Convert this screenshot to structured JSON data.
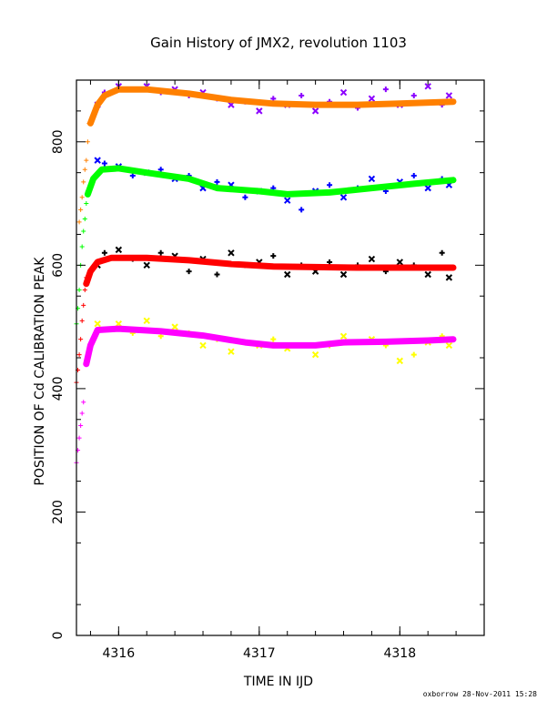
{
  "chart_data": {
    "type": "scatter",
    "title": "Gain History of JMX2, revolution 1103",
    "xlabel": "TIME IN IJD",
    "ylabel": "POSITION OF Cd CALIBRATION PEAK",
    "xlim": [
      4315.7,
      4318.6
    ],
    "ylim": [
      0,
      900
    ],
    "xticks": [
      4316,
      4317,
      4318
    ],
    "xtick_labels": [
      "4316",
      "4317",
      "4318"
    ],
    "yticks": [
      0,
      200,
      400,
      600,
      800
    ],
    "ytick_labels": [
      "0",
      "200",
      "400",
      "600",
      "800"
    ],
    "grid": false,
    "series": [
      {
        "points_color": "#8b00ff",
        "fit_color": "#ff8000",
        "ramp": [
          [
            4315.72,
            670
          ],
          [
            4315.73,
            690
          ],
          [
            4315.74,
            710
          ],
          [
            4315.75,
            735
          ],
          [
            4315.76,
            755
          ],
          [
            4315.77,
            770
          ],
          [
            4315.78,
            800
          ],
          [
            4315.79,
            830
          ]
        ],
        "points": [
          [
            4315.85,
            860
          ],
          [
            4315.9,
            880
          ],
          [
            4316.0,
            890
          ],
          [
            4316.1,
            885
          ],
          [
            4316.2,
            890
          ],
          [
            4316.3,
            880
          ],
          [
            4316.4,
            885
          ],
          [
            4316.5,
            875
          ],
          [
            4316.6,
            880
          ],
          [
            4316.7,
            870
          ],
          [
            4316.8,
            860
          ],
          [
            4316.9,
            865
          ],
          [
            4317.0,
            850
          ],
          [
            4317.1,
            870
          ],
          [
            4317.2,
            860
          ],
          [
            4317.3,
            875
          ],
          [
            4317.4,
            850
          ],
          [
            4317.5,
            865
          ],
          [
            4317.6,
            880
          ],
          [
            4317.7,
            855
          ],
          [
            4317.8,
            870
          ],
          [
            4317.9,
            885
          ],
          [
            4318.0,
            860
          ],
          [
            4318.1,
            875
          ],
          [
            4318.2,
            890
          ],
          [
            4318.3,
            860
          ],
          [
            4318.35,
            875
          ]
        ],
        "fit": [
          [
            4315.8,
            830
          ],
          [
            4315.85,
            860
          ],
          [
            4315.9,
            875
          ],
          [
            4316.0,
            885
          ],
          [
            4316.2,
            885
          ],
          [
            4316.5,
            878
          ],
          [
            4316.8,
            868
          ],
          [
            4317.1,
            862
          ],
          [
            4317.4,
            860
          ],
          [
            4317.7,
            860
          ],
          [
            4318.0,
            862
          ],
          [
            4318.38,
            865
          ]
        ]
      },
      {
        "points_color": "#0000ff",
        "fit_color": "#00ff00",
        "ramp": [
          [
            4315.7,
            505
          ],
          [
            4315.71,
            530
          ],
          [
            4315.72,
            560
          ],
          [
            4315.73,
            600
          ],
          [
            4315.74,
            630
          ],
          [
            4315.75,
            655
          ],
          [
            4315.76,
            675
          ],
          [
            4315.77,
            700
          ],
          [
            4315.78,
            720
          ]
        ],
        "points": [
          [
            4315.85,
            770
          ],
          [
            4315.9,
            765
          ],
          [
            4316.0,
            760
          ],
          [
            4316.1,
            745
          ],
          [
            4316.2,
            750
          ],
          [
            4316.3,
            755
          ],
          [
            4316.4,
            740
          ],
          [
            4316.5,
            745
          ],
          [
            4316.6,
            725
          ],
          [
            4316.7,
            735
          ],
          [
            4316.8,
            730
          ],
          [
            4316.9,
            710
          ],
          [
            4317.0,
            720
          ],
          [
            4317.1,
            725
          ],
          [
            4317.2,
            705
          ],
          [
            4317.3,
            690
          ],
          [
            4317.4,
            720
          ],
          [
            4317.5,
            730
          ],
          [
            4317.6,
            710
          ],
          [
            4317.7,
            725
          ],
          [
            4317.8,
            740
          ],
          [
            4317.9,
            720
          ],
          [
            4318.0,
            735
          ],
          [
            4318.1,
            745
          ],
          [
            4318.2,
            725
          ],
          [
            4318.3,
            740
          ],
          [
            4318.35,
            730
          ]
        ],
        "fit": [
          [
            4315.78,
            715
          ],
          [
            4315.82,
            740
          ],
          [
            4315.88,
            755
          ],
          [
            4316.0,
            757
          ],
          [
            4316.2,
            750
          ],
          [
            4316.5,
            740
          ],
          [
            4316.7,
            725
          ],
          [
            4317.0,
            720
          ],
          [
            4317.2,
            715
          ],
          [
            4317.5,
            718
          ],
          [
            4317.8,
            725
          ],
          [
            4318.1,
            732
          ],
          [
            4318.38,
            738
          ]
        ]
      },
      {
        "points_color": "#000000",
        "fit_color": "#ff0000",
        "ramp": [
          [
            4315.7,
            410
          ],
          [
            4315.71,
            430
          ],
          [
            4315.72,
            455
          ],
          [
            4315.73,
            480
          ],
          [
            4315.74,
            510
          ],
          [
            4315.75,
            535
          ],
          [
            4315.76,
            560
          ],
          [
            4315.77,
            580
          ]
        ],
        "points": [
          [
            4315.85,
            600
          ],
          [
            4315.9,
            620
          ],
          [
            4316.0,
            625
          ],
          [
            4316.1,
            610
          ],
          [
            4316.2,
            600
          ],
          [
            4316.3,
            620
          ],
          [
            4316.4,
            615
          ],
          [
            4316.5,
            590
          ],
          [
            4316.6,
            610
          ],
          [
            4316.7,
            585
          ],
          [
            4316.8,
            620
          ],
          [
            4316.9,
            600
          ],
          [
            4317.0,
            605
          ],
          [
            4317.1,
            615
          ],
          [
            4317.2,
            585
          ],
          [
            4317.3,
            600
          ],
          [
            4317.4,
            590
          ],
          [
            4317.5,
            605
          ],
          [
            4317.6,
            585
          ],
          [
            4317.7,
            600
          ],
          [
            4317.8,
            610
          ],
          [
            4317.9,
            590
          ],
          [
            4318.0,
            605
          ],
          [
            4318.1,
            600
          ],
          [
            4318.2,
            585
          ],
          [
            4318.3,
            620
          ],
          [
            4318.35,
            580
          ]
        ],
        "fit": [
          [
            4315.77,
            570
          ],
          [
            4315.8,
            590
          ],
          [
            4315.85,
            605
          ],
          [
            4315.95,
            612
          ],
          [
            4316.2,
            612
          ],
          [
            4316.5,
            608
          ],
          [
            4316.8,
            602
          ],
          [
            4317.1,
            598
          ],
          [
            4317.4,
            597
          ],
          [
            4317.7,
            596
          ],
          [
            4318.0,
            596
          ],
          [
            4318.38,
            596
          ]
        ]
      },
      {
        "points_color": "#ffff00",
        "fit_color": "#ff00ff",
        "ramp": [
          [
            4315.7,
            280
          ],
          [
            4315.71,
            300
          ],
          [
            4315.72,
            320
          ],
          [
            4315.73,
            340
          ],
          [
            4315.74,
            360
          ],
          [
            4315.75,
            378
          ]
        ],
        "points": [
          [
            4315.85,
            505
          ],
          [
            4315.9,
            495
          ],
          [
            4316.0,
            505
          ],
          [
            4316.1,
            490
          ],
          [
            4316.2,
            510
          ],
          [
            4316.3,
            485
          ],
          [
            4316.4,
            500
          ],
          [
            4316.5,
            490
          ],
          [
            4316.6,
            470
          ],
          [
            4316.7,
            480
          ],
          [
            4316.8,
            460
          ],
          [
            4316.9,
            475
          ],
          [
            4317.0,
            470
          ],
          [
            4317.1,
            480
          ],
          [
            4317.2,
            465
          ],
          [
            4317.3,
            470
          ],
          [
            4317.4,
            455
          ],
          [
            4317.5,
            470
          ],
          [
            4317.6,
            485
          ],
          [
            4317.7,
            475
          ],
          [
            4317.8,
            480
          ],
          [
            4317.9,
            470
          ],
          [
            4318.0,
            445
          ],
          [
            4318.1,
            455
          ],
          [
            4318.2,
            475
          ],
          [
            4318.3,
            485
          ],
          [
            4318.35,
            470
          ]
        ],
        "fit": [
          [
            4315.77,
            440
          ],
          [
            4315.8,
            470
          ],
          [
            4315.85,
            495
          ],
          [
            4316.0,
            497
          ],
          [
            4316.3,
            493
          ],
          [
            4316.6,
            486
          ],
          [
            4316.9,
            475
          ],
          [
            4317.1,
            470
          ],
          [
            4317.4,
            470
          ],
          [
            4317.6,
            475
          ],
          [
            4317.9,
            476
          ],
          [
            4318.2,
            478
          ],
          [
            4318.38,
            480
          ]
        ]
      }
    ]
  },
  "footer": "oxborrow 28-Nov-2011 15:28"
}
